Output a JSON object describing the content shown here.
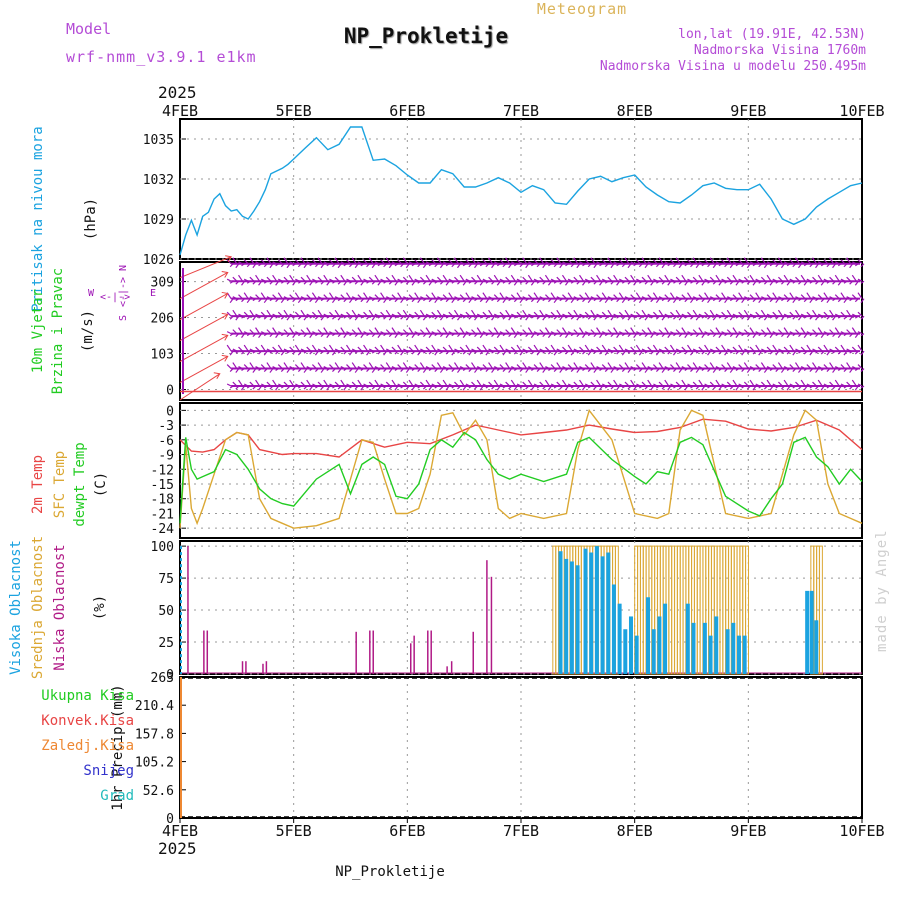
{
  "header": {
    "model_label": "Model",
    "model_name": "wrf-nmm_v3.9.1 e1km",
    "product": "Meteogram",
    "station": "NP_Prokletije",
    "coords": "lon,lat (19.91E, 42.53N)",
    "elevation": "Nadmorska Visina 1760m",
    "model_elevation": "Nadmorska Visina u modelu 250.495m",
    "credit": "made by Angel"
  },
  "time_axis": {
    "year_top": "2025",
    "year_bottom": "2025",
    "ticks": [
      "4FEB",
      "5FEB",
      "6FEB",
      "7FEB",
      "8FEB",
      "9FEB",
      "10FEB"
    ]
  },
  "footer": {
    "station": "NP_Prokletije"
  },
  "colors": {
    "pressure": "#1ba3e0",
    "wind": "#9d12b5",
    "wind_label": "#22cc22",
    "temp2m": "#e84545",
    "sfc": "#dba834",
    "dewpt": "#22cc22",
    "high_cloud": "#1ba3e0",
    "mid_cloud": "#dba834",
    "low_cloud": "#b01a86",
    "total_precip": "#22cc22",
    "conv_precip": "#e84545",
    "frozen_precip": "#ee8833",
    "snow": "#3333cc",
    "hail": "#22bbbb",
    "header_purple": "#b44cd6",
    "product_gold": "#dbb45a"
  },
  "chart_data": [
    {
      "type": "line",
      "panel": "pressure",
      "ylabel_lines": [
        "Pritisak na nivou mora",
        "(hPa)"
      ],
      "yticks": [
        1026,
        1029,
        1032,
        1035
      ],
      "ylim": [
        1026,
        1036.5
      ],
      "x_unit": "days since 4FEB 00UTC",
      "series": [
        {
          "x": [
            0.0,
            0.05,
            0.1,
            0.15,
            0.2,
            0.25,
            0.3,
            0.35,
            0.4,
            0.45,
            0.5,
            0.55,
            0.6,
            0.65,
            0.7,
            0.75,
            0.8,
            0.85,
            0.9,
            0.95,
            1.0,
            1.1,
            1.2,
            1.3,
            1.4,
            1.5,
            1.6,
            1.7,
            1.8,
            1.9,
            2.0,
            2.1,
            2.2,
            2.3,
            2.4,
            2.5,
            2.6,
            2.7,
            2.8,
            2.9,
            3.0,
            3.1,
            3.2,
            3.3,
            3.4,
            3.5,
            3.6,
            3.7,
            3.8,
            3.9,
            4.0,
            4.1,
            4.2,
            4.3,
            4.4,
            4.5,
            4.6,
            4.7,
            4.8,
            4.9,
            5.0,
            5.1,
            5.2,
            5.3,
            5.4,
            5.5,
            5.6,
            5.7,
            5.8,
            5.9,
            6.0
          ],
          "y": [
            1026.3,
            1027.8,
            1028.9,
            1027.8,
            1029.2,
            1029.5,
            1030.5,
            1030.9,
            1030.0,
            1029.6,
            1029.7,
            1029.2,
            1029.0,
            1029.6,
            1030.3,
            1031.2,
            1032.4,
            1032.6,
            1032.8,
            1033.1,
            1033.5,
            1034.3,
            1035.1,
            1034.2,
            1034.6,
            1035.9,
            1035.9,
            1033.4,
            1033.5,
            1033.0,
            1032.3,
            1031.7,
            1031.7,
            1032.7,
            1032.4,
            1031.4,
            1031.4,
            1031.7,
            1032.1,
            1031.7,
            1031.0,
            1031.5,
            1031.2,
            1030.2,
            1030.1,
            1031.1,
            1032.0,
            1032.2,
            1031.8,
            1032.1,
            1032.3,
            1031.4,
            1030.8,
            1030.3,
            1030.2,
            1030.8,
            1031.5,
            1031.7,
            1031.3,
            1031.2,
            1031.2,
            1031.6,
            1030.5,
            1029.0,
            1028.6,
            1029.0,
            1029.9,
            1030.5,
            1031.0,
            1031.5,
            1031.7
          ]
        }
      ]
    },
    {
      "type": "wind_barbs",
      "panel": "wind",
      "ylabel_lines": [
        "10m Vjetar",
        "Brzina i Pravac",
        "(m/s)"
      ],
      "compass": {
        "n": "N",
        "s": "S",
        "e": "E",
        "w": "W"
      },
      "yticks": [
        0,
        103,
        206,
        309
      ],
      "ylim": [
        -30,
        365
      ],
      "row_levels": [
        10,
        60,
        110,
        160,
        210,
        260,
        310,
        360
      ],
      "barb_start_day": 0.45,
      "barb_step_days": 0.05,
      "speed_line_value": 0
    },
    {
      "type": "line",
      "panel": "temperature",
      "ylabel_lines": [
        "2m Temp",
        "SFC Temp",
        "dewpt Temp",
        "(C)"
      ],
      "yticks": [
        0,
        -3,
        -6,
        -9,
        -12,
        -15,
        -18,
        -21,
        -24
      ],
      "ylim": [
        -26,
        1.5
      ],
      "x_unit": "days since 4FEB 00UTC",
      "series": [
        {
          "key": "temp2m",
          "x": [
            0.0,
            0.1,
            0.2,
            0.3,
            0.4,
            0.5,
            0.6,
            0.7,
            0.8,
            0.9,
            1.0,
            1.2,
            1.4,
            1.6,
            1.8,
            2.0,
            2.2,
            2.4,
            2.6,
            2.7,
            2.8,
            3.0,
            3.2,
            3.4,
            3.6,
            3.8,
            4.0,
            4.2,
            4.4,
            4.6,
            4.8,
            5.0,
            5.2,
            5.4,
            5.6,
            5.8,
            6.0
          ],
          "y": [
            -6.0,
            -8.3,
            -8.5,
            -8.0,
            -6.0,
            -4.5,
            -5.0,
            -8.0,
            -8.5,
            -9.0,
            -8.8,
            -8.8,
            -9.5,
            -6.0,
            -7.5,
            -6.5,
            -6.8,
            -5.0,
            -3.0,
            -3.5,
            -4.0,
            -5.0,
            -4.5,
            -4.0,
            -3.0,
            -3.8,
            -4.5,
            -4.3,
            -3.5,
            -1.8,
            -2.2,
            -3.8,
            -4.2,
            -3.5,
            -2.0,
            -4.0,
            -8.0
          ]
        },
        {
          "key": "sfc",
          "x": [
            0.0,
            0.05,
            0.1,
            0.15,
            0.2,
            0.3,
            0.4,
            0.5,
            0.6,
            0.7,
            0.8,
            0.9,
            1.0,
            1.2,
            1.4,
            1.5,
            1.6,
            1.7,
            1.8,
            1.9,
            2.0,
            2.1,
            2.2,
            2.3,
            2.4,
            2.5,
            2.6,
            2.7,
            2.8,
            2.9,
            3.0,
            3.2,
            3.4,
            3.5,
            3.6,
            3.8,
            4.0,
            4.2,
            4.3,
            4.4,
            4.5,
            4.6,
            4.8,
            5.0,
            5.2,
            5.4,
            5.5,
            5.6,
            5.7,
            5.8,
            5.9,
            6.0
          ],
          "y": [
            -24.0,
            -7.0,
            -20.0,
            -23.0,
            -20.0,
            -13.0,
            -6.0,
            -4.5,
            -5.0,
            -18.0,
            -22.0,
            -23.0,
            -24.0,
            -23.5,
            -22.0,
            -14.0,
            -6.0,
            -6.5,
            -14.0,
            -21.0,
            -21.0,
            -20.0,
            -13.0,
            -1.0,
            -0.5,
            -5.0,
            -2.0,
            -6.0,
            -20.0,
            -22.0,
            -21.0,
            -22.0,
            -21.0,
            -8.0,
            0.0,
            -6.0,
            -21.0,
            -22.0,
            -21.0,
            -4.0,
            0.0,
            -1.0,
            -21.0,
            -22.0,
            -21.0,
            -5.0,
            0.0,
            -2.0,
            -15.0,
            -21.0,
            -22.0,
            -23.0
          ]
        },
        {
          "key": "dewpt",
          "x": [
            0.0,
            0.05,
            0.1,
            0.15,
            0.2,
            0.3,
            0.4,
            0.5,
            0.6,
            0.7,
            0.8,
            0.9,
            1.0,
            1.2,
            1.3,
            1.4,
            1.5,
            1.6,
            1.7,
            1.8,
            1.9,
            2.0,
            2.1,
            2.2,
            2.3,
            2.4,
            2.5,
            2.6,
            2.7,
            2.8,
            2.9,
            3.0,
            3.2,
            3.4,
            3.5,
            3.6,
            3.8,
            4.0,
            4.1,
            4.2,
            4.3,
            4.4,
            4.5,
            4.6,
            4.8,
            5.0,
            5.1,
            5.2,
            5.3,
            5.4,
            5.5,
            5.6,
            5.7,
            5.8,
            5.9,
            6.0
          ],
          "y": [
            -23.0,
            -5.5,
            -12.0,
            -14.0,
            -13.5,
            -12.5,
            -8.0,
            -9.0,
            -12.0,
            -16.0,
            -18.0,
            -19.0,
            -19.5,
            -14.0,
            -12.5,
            -11.0,
            -17.0,
            -11.0,
            -9.5,
            -11.0,
            -17.5,
            -18.0,
            -15.0,
            -8.0,
            -6.0,
            -7.5,
            -4.5,
            -6.0,
            -10.0,
            -13.0,
            -14.0,
            -13.0,
            -14.5,
            -13.0,
            -6.5,
            -5.5,
            -10.0,
            -13.5,
            -15.0,
            -12.5,
            -13.0,
            -6.5,
            -5.5,
            -7.0,
            -17.5,
            -20.5,
            -21.5,
            -18.0,
            -15.0,
            -6.5,
            -5.5,
            -9.5,
            -11.5,
            -15.0,
            -12.0,
            -14.5
          ]
        }
      ]
    },
    {
      "type": "bar",
      "panel": "clouds",
      "ylabel_lines": [
        "Visoka Oblacnost",
        "Srednja Oblacnost",
        "Niska Oblacnost",
        "(%)"
      ],
      "yticks": [
        0,
        25,
        50,
        75,
        100
      ],
      "ylim": [
        0,
        104
      ],
      "low_bars": [
        [
          0.07,
          100
        ],
        [
          0.21,
          34
        ],
        [
          0.24,
          34
        ],
        [
          0.55,
          10
        ],
        [
          0.58,
          10
        ],
        [
          0.73,
          8
        ],
        [
          0.76,
          10
        ],
        [
          1.55,
          33
        ],
        [
          1.67,
          34
        ],
        [
          1.7,
          34
        ],
        [
          2.03,
          24
        ],
        [
          2.06,
          30
        ],
        [
          2.18,
          34
        ],
        [
          2.21,
          34
        ],
        [
          2.35,
          6
        ],
        [
          2.39,
          10
        ],
        [
          2.58,
          33
        ],
        [
          2.7,
          89
        ],
        [
          2.74,
          76
        ]
      ],
      "mid_bars_ranges": [
        [
          3.28,
          3.85,
          100
        ],
        [
          4.0,
          5.0,
          100
        ],
        [
          5.55,
          5.65,
          100
        ]
      ],
      "high_bars": [
        [
          3.33,
          96
        ],
        [
          3.38,
          90
        ],
        [
          3.43,
          88
        ],
        [
          3.48,
          85
        ],
        [
          3.55,
          98
        ],
        [
          3.6,
          95
        ],
        [
          3.65,
          100
        ],
        [
          3.7,
          92
        ],
        [
          3.75,
          95
        ],
        [
          3.8,
          70
        ],
        [
          3.85,
          55
        ],
        [
          3.9,
          35
        ],
        [
          3.95,
          45
        ],
        [
          4.0,
          30
        ],
        [
          4.1,
          60
        ],
        [
          4.15,
          35
        ],
        [
          4.2,
          45
        ],
        [
          4.25,
          55
        ],
        [
          4.45,
          55
        ],
        [
          4.5,
          40
        ],
        [
          4.6,
          40
        ],
        [
          4.65,
          30
        ],
        [
          4.7,
          45
        ],
        [
          4.8,
          35
        ],
        [
          4.85,
          40
        ],
        [
          4.9,
          30
        ],
        [
          4.95,
          30
        ],
        [
          5.5,
          65
        ],
        [
          5.54,
          65
        ],
        [
          5.58,
          42
        ]
      ]
    },
    {
      "type": "bar",
      "panel": "precip",
      "ylabel_lines": [
        "1hr Precip (mm)"
      ],
      "legend": [
        "Ukupna Kisa",
        "Konvek.Kisa",
        "Zaledj.Kisa",
        "Snijeg",
        "Grad"
      ],
      "ytick_labels": [
        "0",
        "52.6",
        "105.2",
        "157.8",
        "210.4",
        "263"
      ],
      "ylim": [
        0,
        263
      ],
      "values": []
    }
  ]
}
